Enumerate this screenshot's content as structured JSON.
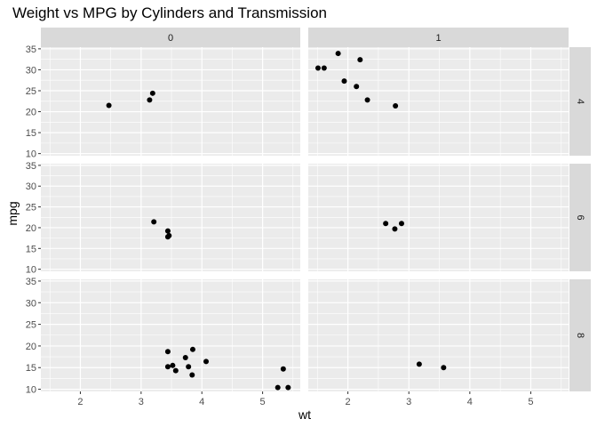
{
  "chart_data": {
    "type": "scatter",
    "title": "Weight vs MPG by Cylinders and Transmission",
    "xlabel": "wt",
    "ylabel": "mpg",
    "xlim": [
      1.35,
      5.62
    ],
    "ylim": [
      9.5,
      35.4
    ],
    "x_ticks": [
      2,
      3,
      4,
      5
    ],
    "y_ticks": [
      10,
      15,
      20,
      25,
      30,
      35
    ],
    "grid": true,
    "facet_cols": [
      "0",
      "1"
    ],
    "facet_rows": [
      "4",
      "6",
      "8"
    ],
    "panels": [
      {
        "col": "0",
        "row": "4",
        "points": [
          [
            2.47,
            21.5
          ],
          [
            3.14,
            22.8
          ],
          [
            3.19,
            24.4
          ]
        ]
      },
      {
        "col": "1",
        "row": "4",
        "points": [
          [
            1.51,
            30.4
          ],
          [
            1.61,
            30.4
          ],
          [
            1.84,
            33.9
          ],
          [
            1.94,
            27.3
          ],
          [
            2.14,
            26.0
          ],
          [
            2.2,
            32.4
          ],
          [
            2.32,
            22.8
          ],
          [
            2.78,
            21.4
          ]
        ]
      },
      {
        "col": "0",
        "row": "6",
        "points": [
          [
            3.21,
            21.4
          ],
          [
            3.44,
            19.2
          ],
          [
            3.46,
            18.1
          ],
          [
            3.44,
            17.8
          ]
        ]
      },
      {
        "col": "1",
        "row": "6",
        "points": [
          [
            2.62,
            21.0
          ],
          [
            2.77,
            19.7
          ],
          [
            2.88,
            21.0
          ]
        ]
      },
      {
        "col": "0",
        "row": "8",
        "points": [
          [
            3.44,
            18.7
          ],
          [
            3.57,
            14.3
          ],
          [
            3.73,
            17.3
          ],
          [
            3.78,
            15.2
          ],
          [
            3.84,
            13.3
          ],
          [
            3.85,
            19.2
          ],
          [
            3.44,
            15.2
          ],
          [
            3.52,
            15.5
          ],
          [
            4.07,
            16.4
          ],
          [
            5.25,
            10.4
          ],
          [
            5.42,
            10.4
          ],
          [
            5.34,
            14.7
          ]
        ]
      },
      {
        "col": "1",
        "row": "8",
        "points": [
          [
            3.17,
            15.8
          ],
          [
            3.57,
            15.0
          ]
        ]
      }
    ]
  }
}
